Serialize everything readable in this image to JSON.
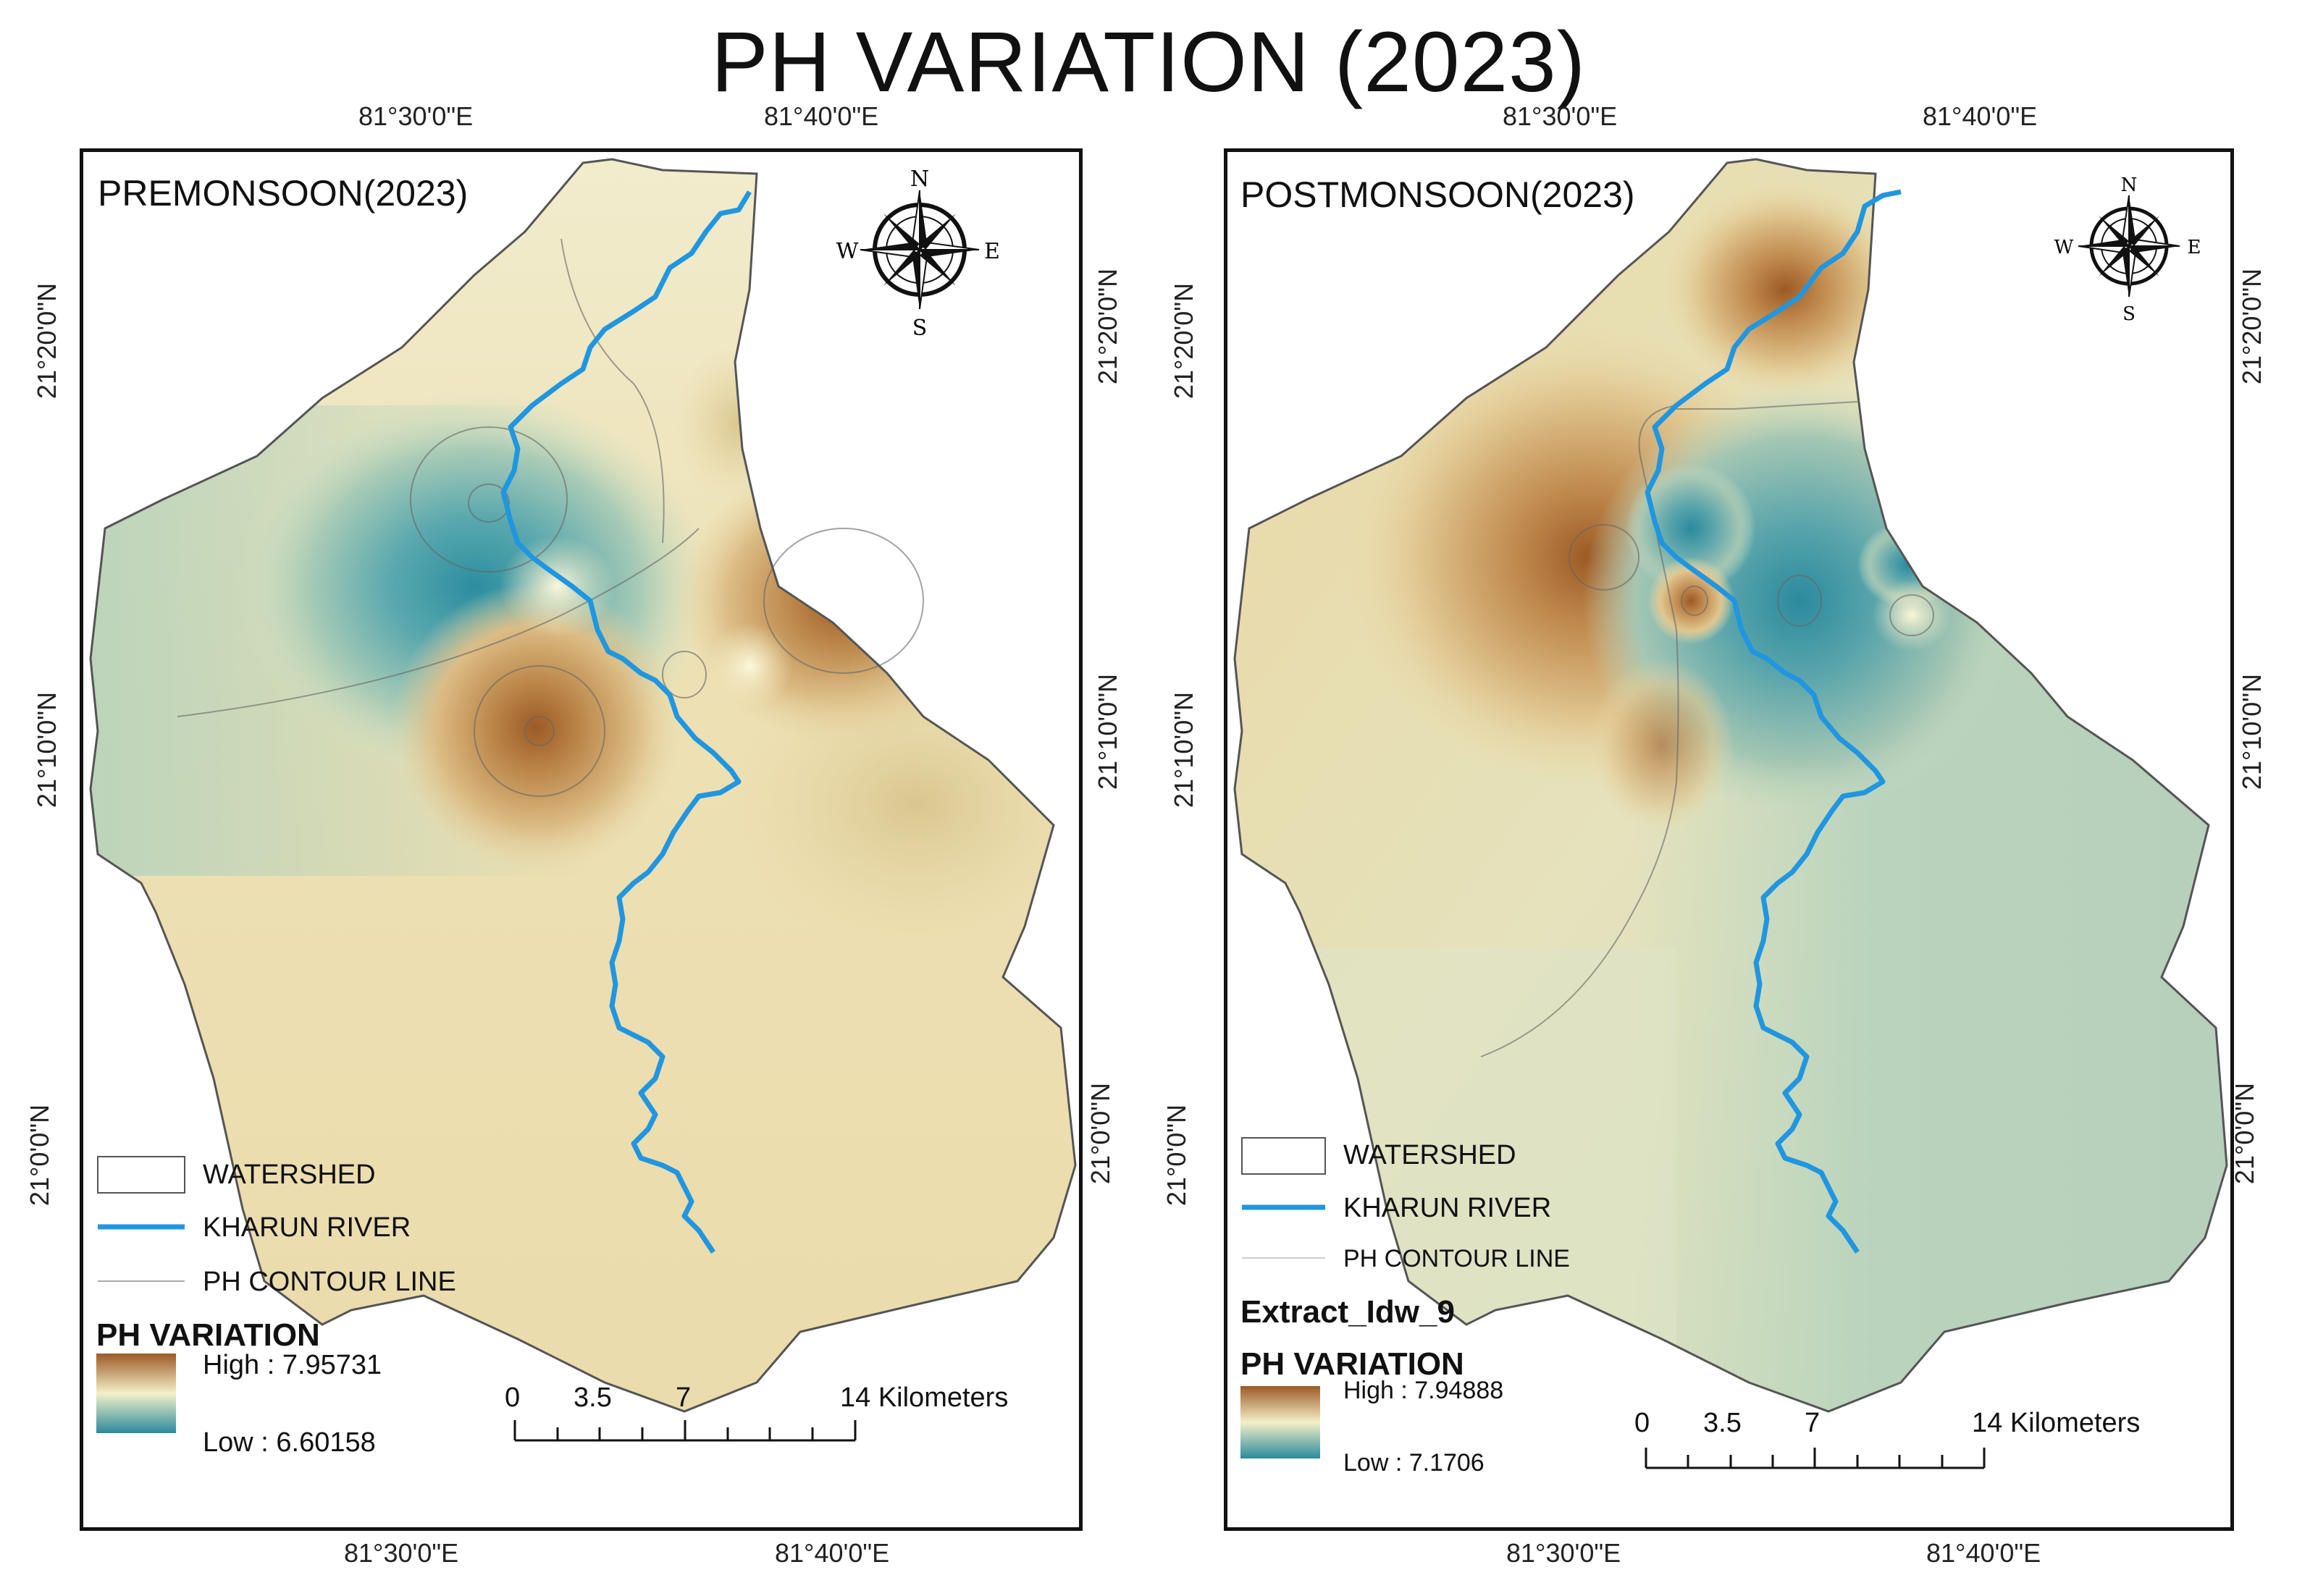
{
  "title": "PH VARIATION (2023)",
  "left_map": {
    "season": "PREMONSOON(2023)",
    "top_lon": [
      "81°30'0\"E",
      "81°40'0\"E"
    ],
    "bottom_lon": [
      "81°30'0\"E",
      "81°40'0\"E"
    ],
    "lat": [
      "21°20'0\"N",
      "21°10'0\"N",
      "21°0'0\"N"
    ],
    "legend": {
      "watershed": "WATERSHED",
      "river": "KHARUN RIVER",
      "contour": "PH CONTOUR LINE",
      "var_title": "PH VARIATION",
      "high": "High : 7.95731",
      "low": "Low : 6.60158"
    },
    "scale": {
      "ticks": [
        "0",
        "3.5",
        "7",
        "14 Kilometers"
      ]
    }
  },
  "right_map": {
    "season": "POSTMONSOON(2023)",
    "top_lon": [
      "81°30'0\"E",
      "81°40'0\"E"
    ],
    "bottom_lon": [
      "81°30'0\"E",
      "81°40'0\"E"
    ],
    "lat": [
      "21°20'0\"N",
      "21°10'0\"N",
      "21°0'0\"N"
    ],
    "legend": {
      "watershed": "WATERSHED",
      "river": "KHARUN RIVER",
      "contour": "PH CONTOUR LINE",
      "extract": "Extract_Idw_9",
      "var_title": "PH VARIATION",
      "high": "High : 7.94888",
      "low": "Low : 7.1706"
    },
    "scale": {
      "ticks": [
        "0",
        "3.5",
        "7",
        "14 Kilometers"
      ]
    }
  },
  "compass": {
    "n": "N",
    "s": "S",
    "e": "E",
    "w": "W"
  },
  "colors": {
    "high": "#a0612a",
    "mid": "#f4f0c8",
    "low": "#2b8a9e",
    "river": "#2196e0"
  }
}
